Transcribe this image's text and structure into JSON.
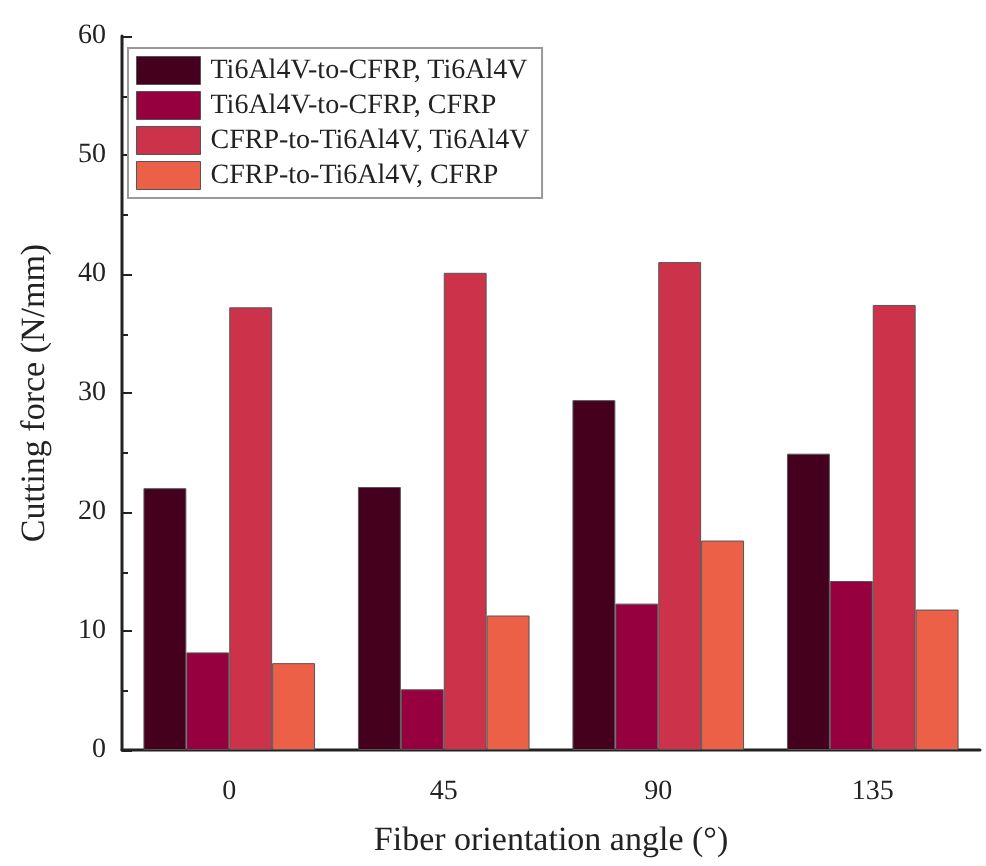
{
  "chart_data": {
    "type": "bar",
    "xlabel": "Fiber orientation angle (°)",
    "ylabel": "Cutting force (N/mm)",
    "categories": [
      "0",
      "45",
      "90",
      "135"
    ],
    "series": [
      {
        "name": "Ti6Al4V-to-CFRP, Ti6Al4V",
        "color": "#45001e",
        "values": [
          22.0,
          22.1,
          29.4,
          24.9
        ]
      },
      {
        "name": "Ti6Al4V-to-CFRP, CFRP",
        "color": "#97003f",
        "values": [
          8.2,
          5.1,
          12.3,
          14.2
        ]
      },
      {
        "name": "CFRP-to-Ti6Al4V, Ti6Al4V",
        "color": "#cc334b",
        "values": [
          37.2,
          40.1,
          41.0,
          37.4
        ]
      },
      {
        "name": "CFRP-to-Ti6Al4V, CFRP",
        "color": "#ec6047",
        "values": [
          7.3,
          11.3,
          17.6,
          11.8
        ]
      }
    ],
    "ylim": [
      0,
      60
    ],
    "yticks": [
      0,
      10,
      20,
      30,
      40,
      50,
      60
    ],
    "grid": false,
    "legend": "top left"
  }
}
